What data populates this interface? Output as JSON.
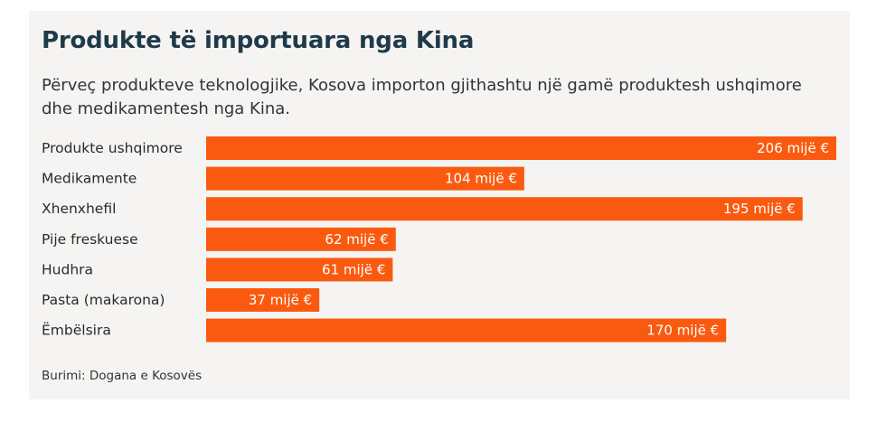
{
  "title": "Produkte të importuara nga Kina",
  "subtitle": "Përveç produkteve teknologjike, Kosova importon gjithashtu një gamë produktesh ushqimore dhe medikamentesh nga Kina.",
  "source": "Burimi: Dogana e Kosovës",
  "colors": {
    "bar": "#fa5a0f",
    "background": "#f5f4f2",
    "title": "#1f3a4a"
  },
  "chart_data": {
    "type": "bar",
    "orientation": "horizontal",
    "categories": [
      "Produkte ushqimore",
      "Medikamente",
      "Xhenxhefil",
      "Pije freskuese",
      "Hudhra",
      "Pasta (makarona)",
      "Ëmbëlsira"
    ],
    "values": [
      206,
      104,
      195,
      62,
      61,
      37,
      170
    ],
    "value_labels": [
      "206 mijë €",
      "104 mijë €",
      "195 mijë €",
      "62 mijë €",
      "61 mijë €",
      "37 mijë €",
      "170 mijë €"
    ],
    "unit": "mijë €",
    "xlim": [
      0,
      206
    ],
    "grid": false,
    "legend": "none"
  }
}
